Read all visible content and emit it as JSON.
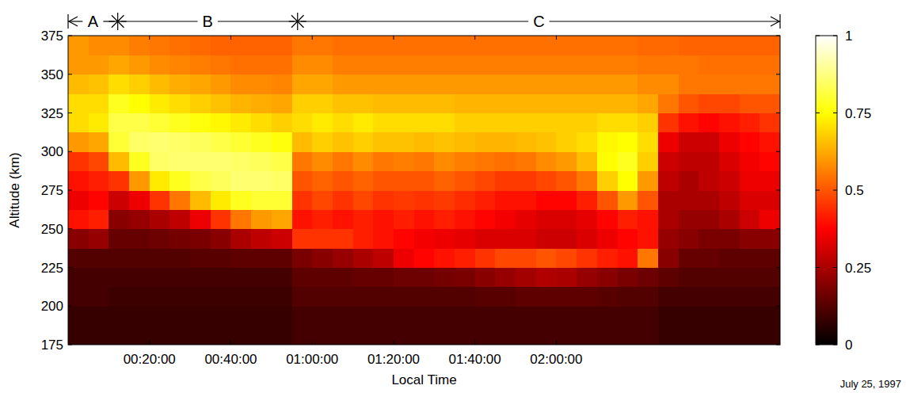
{
  "chart_data": {
    "type": "heatmap",
    "x_label": "Local Time",
    "y_label": "Altitude (km)",
    "date": "July 25, 1997",
    "xlim": [
      0,
      175
    ],
    "ylim": [
      175,
      375
    ],
    "xticks": [
      {
        "value": 20,
        "label": "00:20:00"
      },
      {
        "value": 40,
        "label": "00:40:00"
      },
      {
        "value": 60,
        "label": "01:00:00"
      },
      {
        "value": 80,
        "label": "01:20:00"
      },
      {
        "value": 100,
        "label": "01:40:00"
      },
      {
        "value": 120,
        "label": "02:00:00"
      }
    ],
    "yticks": [
      175,
      200,
      225,
      250,
      275,
      300,
      325,
      350,
      375
    ],
    "annotations": [
      {
        "text": "A",
        "start": 0,
        "end": 12.2
      },
      {
        "text": "B",
        "start": 12.2,
        "end": 56.4
      },
      {
        "text": "C",
        "start": 56.4,
        "end": 175
      }
    ],
    "colorbar": {
      "range": [
        0,
        1
      ],
      "ticks": [
        0,
        0.25,
        0.5,
        0.75,
        1
      ]
    },
    "x_bins": [
      0,
      5,
      10,
      15,
      20,
      25,
      30,
      35,
      40,
      45,
      50,
      55,
      60,
      65,
      70,
      75,
      80,
      85,
      90,
      95,
      100,
      105,
      110,
      115,
      120,
      125,
      130,
      135,
      140,
      145,
      150,
      155,
      160,
      165,
      170,
      175
    ],
    "y_bins": [
      175,
      187.5,
      200,
      212.5,
      225,
      237.5,
      250,
      262.5,
      275,
      287.5,
      300,
      312.5,
      325,
      337.5,
      350,
      362.5,
      375
    ],
    "values": [
      [
        0.08,
        0.08,
        0.1,
        0.1,
        0.12,
        0.2,
        0.4,
        0.35,
        0.4,
        0.45,
        0.6,
        0.7,
        0.7,
        0.65,
        0.6,
        0.6
      ],
      [
        0.08,
        0.08,
        0.1,
        0.1,
        0.12,
        0.22,
        0.42,
        0.38,
        0.42,
        0.48,
        0.62,
        0.72,
        0.7,
        0.66,
        0.6,
        0.58
      ],
      [
        0.08,
        0.08,
        0.09,
        0.1,
        0.12,
        0.15,
        0.2,
        0.3,
        0.45,
        0.65,
        0.8,
        0.82,
        0.78,
        0.7,
        0.62,
        0.58
      ],
      [
        0.08,
        0.08,
        0.09,
        0.1,
        0.12,
        0.15,
        0.22,
        0.35,
        0.6,
        0.78,
        0.85,
        0.82,
        0.75,
        0.68,
        0.6,
        0.56
      ],
      [
        0.08,
        0.08,
        0.09,
        0.1,
        0.12,
        0.16,
        0.25,
        0.45,
        0.72,
        0.85,
        0.86,
        0.8,
        0.72,
        0.65,
        0.58,
        0.55
      ],
      [
        0.08,
        0.08,
        0.09,
        0.1,
        0.12,
        0.17,
        0.28,
        0.55,
        0.78,
        0.86,
        0.85,
        0.78,
        0.7,
        0.63,
        0.57,
        0.54
      ],
      [
        0.08,
        0.08,
        0.09,
        0.1,
        0.13,
        0.18,
        0.35,
        0.65,
        0.82,
        0.86,
        0.84,
        0.76,
        0.68,
        0.62,
        0.56,
        0.53
      ],
      [
        0.08,
        0.08,
        0.09,
        0.1,
        0.13,
        0.2,
        0.45,
        0.72,
        0.84,
        0.86,
        0.82,
        0.74,
        0.66,
        0.6,
        0.55,
        0.52
      ],
      [
        0.08,
        0.08,
        0.09,
        0.1,
        0.14,
        0.25,
        0.55,
        0.78,
        0.86,
        0.85,
        0.8,
        0.72,
        0.64,
        0.58,
        0.54,
        0.52
      ],
      [
        0.08,
        0.08,
        0.09,
        0.1,
        0.14,
        0.28,
        0.6,
        0.8,
        0.86,
        0.84,
        0.78,
        0.7,
        0.63,
        0.58,
        0.54,
        0.52
      ],
      [
        0.08,
        0.08,
        0.09,
        0.1,
        0.14,
        0.3,
        0.62,
        0.8,
        0.85,
        0.82,
        0.76,
        0.68,
        0.62,
        0.57,
        0.54,
        0.52
      ],
      [
        0.1,
        0.1,
        0.12,
        0.14,
        0.18,
        0.45,
        0.4,
        0.45,
        0.5,
        0.55,
        0.65,
        0.7,
        0.68,
        0.62,
        0.58,
        0.55
      ],
      [
        0.1,
        0.1,
        0.12,
        0.14,
        0.2,
        0.45,
        0.42,
        0.48,
        0.52,
        0.58,
        0.68,
        0.72,
        0.68,
        0.62,
        0.58,
        0.55
      ],
      [
        0.1,
        0.1,
        0.12,
        0.14,
        0.22,
        0.45,
        0.4,
        0.45,
        0.5,
        0.55,
        0.66,
        0.7,
        0.66,
        0.6,
        0.56,
        0.54
      ],
      [
        0.1,
        0.1,
        0.12,
        0.15,
        0.25,
        0.42,
        0.42,
        0.48,
        0.52,
        0.58,
        0.68,
        0.72,
        0.66,
        0.6,
        0.56,
        0.54
      ],
      [
        0.1,
        0.1,
        0.12,
        0.15,
        0.28,
        0.4,
        0.4,
        0.45,
        0.5,
        0.55,
        0.66,
        0.7,
        0.65,
        0.6,
        0.56,
        0.54
      ],
      [
        0.1,
        0.1,
        0.12,
        0.16,
        0.35,
        0.38,
        0.42,
        0.46,
        0.5,
        0.56,
        0.66,
        0.7,
        0.65,
        0.6,
        0.56,
        0.54
      ],
      [
        0.1,
        0.1,
        0.12,
        0.16,
        0.38,
        0.36,
        0.4,
        0.45,
        0.5,
        0.55,
        0.65,
        0.7,
        0.65,
        0.6,
        0.56,
        0.54
      ],
      [
        0.1,
        0.1,
        0.12,
        0.17,
        0.4,
        0.35,
        0.42,
        0.46,
        0.52,
        0.58,
        0.66,
        0.7,
        0.65,
        0.6,
        0.56,
        0.54
      ],
      [
        0.1,
        0.1,
        0.12,
        0.18,
        0.42,
        0.34,
        0.4,
        0.44,
        0.5,
        0.56,
        0.65,
        0.68,
        0.64,
        0.6,
        0.56,
        0.54
      ],
      [
        0.1,
        0.1,
        0.13,
        0.2,
        0.45,
        0.32,
        0.38,
        0.42,
        0.48,
        0.55,
        0.64,
        0.68,
        0.64,
        0.6,
        0.56,
        0.54
      ],
      [
        0.1,
        0.1,
        0.13,
        0.22,
        0.48,
        0.32,
        0.36,
        0.4,
        0.46,
        0.54,
        0.64,
        0.68,
        0.64,
        0.6,
        0.56,
        0.54
      ],
      [
        0.1,
        0.1,
        0.14,
        0.24,
        0.48,
        0.32,
        0.34,
        0.4,
        0.46,
        0.55,
        0.65,
        0.68,
        0.64,
        0.6,
        0.56,
        0.54
      ],
      [
        0.1,
        0.1,
        0.14,
        0.26,
        0.5,
        0.3,
        0.32,
        0.38,
        0.48,
        0.58,
        0.66,
        0.68,
        0.64,
        0.6,
        0.56,
        0.54
      ],
      [
        0.1,
        0.1,
        0.14,
        0.25,
        0.48,
        0.3,
        0.32,
        0.38,
        0.5,
        0.6,
        0.68,
        0.68,
        0.64,
        0.6,
        0.56,
        0.54
      ],
      [
        0.1,
        0.1,
        0.14,
        0.22,
        0.45,
        0.32,
        0.34,
        0.42,
        0.55,
        0.65,
        0.7,
        0.68,
        0.64,
        0.6,
        0.56,
        0.54
      ],
      [
        0.1,
        0.1,
        0.13,
        0.2,
        0.42,
        0.35,
        0.38,
        0.5,
        0.68,
        0.75,
        0.74,
        0.7,
        0.64,
        0.6,
        0.56,
        0.54
      ],
      [
        0.1,
        0.1,
        0.12,
        0.18,
        0.4,
        0.38,
        0.42,
        0.6,
        0.75,
        0.78,
        0.75,
        0.7,
        0.64,
        0.6,
        0.56,
        0.54
      ],
      [
        0.1,
        0.1,
        0.12,
        0.16,
        0.55,
        0.4,
        0.4,
        0.5,
        0.6,
        0.68,
        0.7,
        0.68,
        0.62,
        0.58,
        0.55,
        0.53
      ],
      [
        0.08,
        0.08,
        0.1,
        0.14,
        0.2,
        0.22,
        0.25,
        0.25,
        0.28,
        0.3,
        0.35,
        0.45,
        0.55,
        0.58,
        0.55,
        0.53
      ],
      [
        0.08,
        0.08,
        0.1,
        0.12,
        0.15,
        0.2,
        0.22,
        0.25,
        0.25,
        0.28,
        0.3,
        0.4,
        0.5,
        0.55,
        0.55,
        0.52
      ],
      [
        0.08,
        0.08,
        0.1,
        0.12,
        0.15,
        0.18,
        0.22,
        0.25,
        0.28,
        0.28,
        0.3,
        0.38,
        0.48,
        0.55,
        0.54,
        0.52
      ],
      [
        0.08,
        0.08,
        0.1,
        0.12,
        0.14,
        0.18,
        0.25,
        0.28,
        0.3,
        0.32,
        0.35,
        0.4,
        0.48,
        0.55,
        0.54,
        0.52
      ],
      [
        0.08,
        0.08,
        0.1,
        0.12,
        0.14,
        0.2,
        0.3,
        0.32,
        0.35,
        0.36,
        0.38,
        0.42,
        0.5,
        0.55,
        0.54,
        0.52
      ],
      [
        0.08,
        0.08,
        0.1,
        0.12,
        0.14,
        0.2,
        0.35,
        0.32,
        0.35,
        0.38,
        0.4,
        0.45,
        0.5,
        0.55,
        0.54,
        0.52
      ]
    ]
  }
}
